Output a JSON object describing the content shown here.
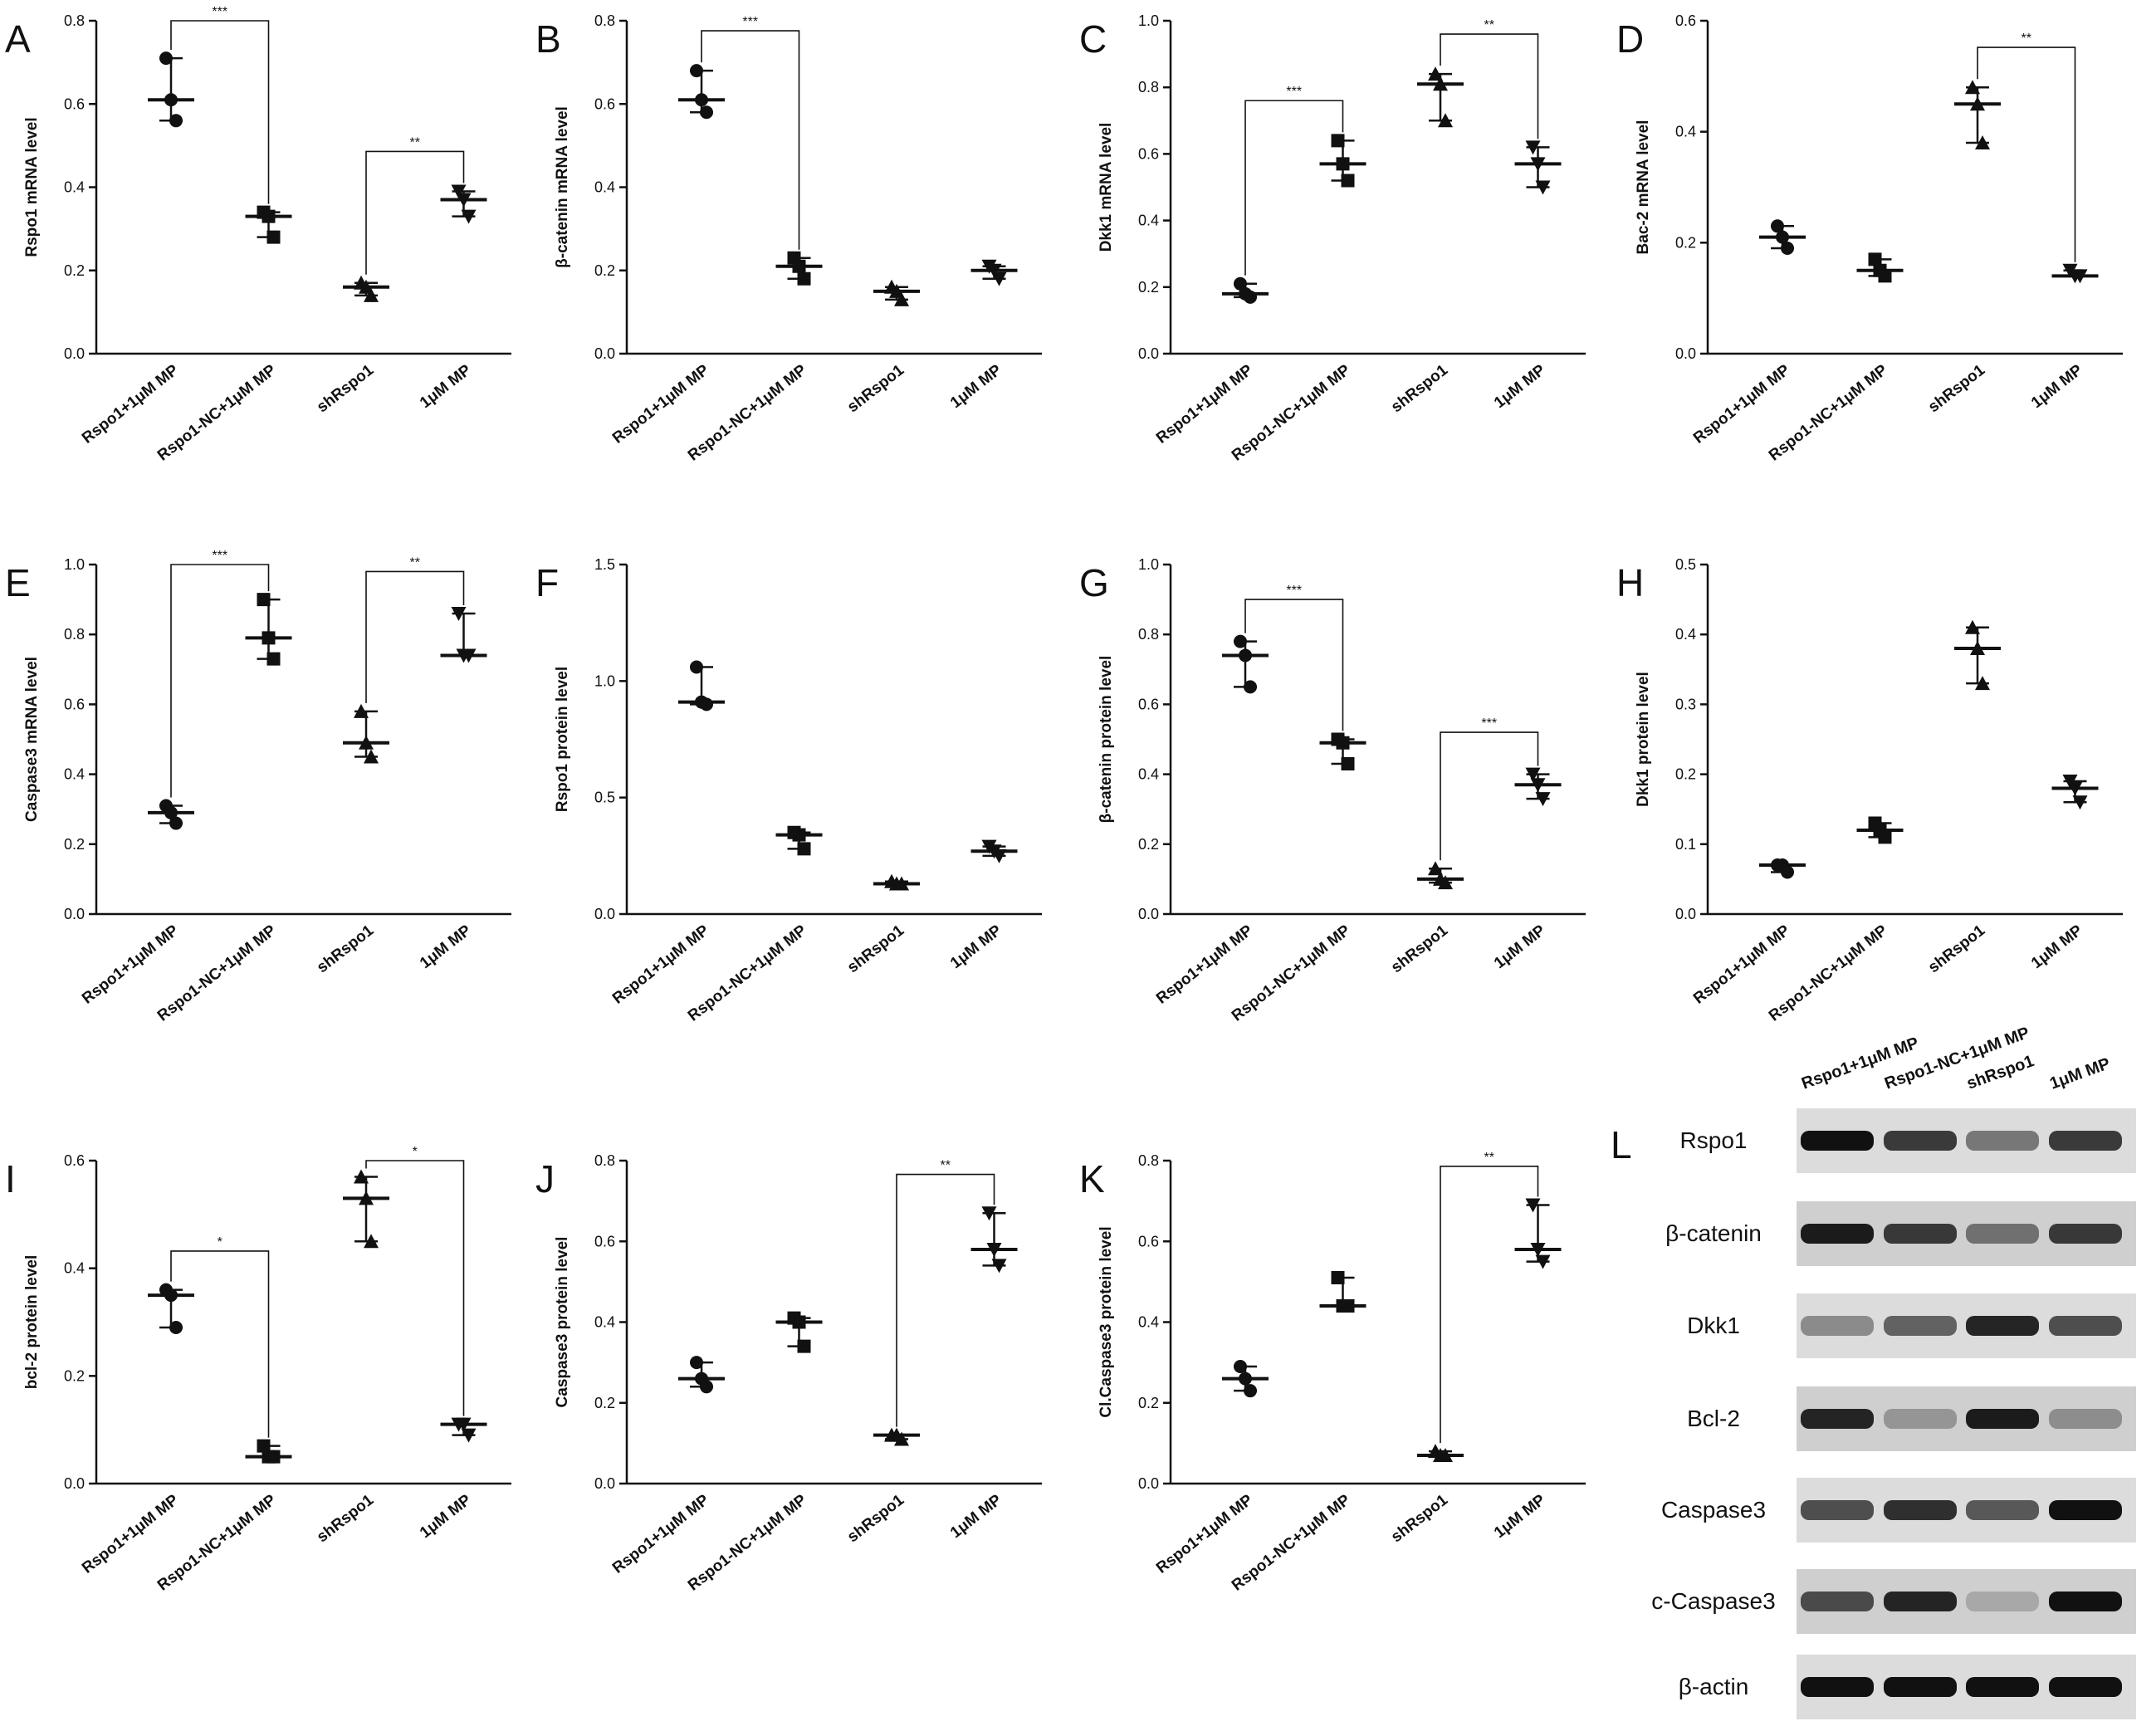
{
  "chart_data": [
    {
      "type": "dotplot",
      "label": "A",
      "ylabel": "Rspo1 mRNA level",
      "categories": [
        "Rspo1+1μM MP",
        "Rspo1-NC+1μM MP",
        "shRspo1",
        "1μM MP"
      ],
      "values": [
        [
          0.71,
          0.61,
          0.56
        ],
        [
          0.34,
          0.33,
          0.28
        ],
        [
          0.17,
          0.16,
          0.14
        ],
        [
          0.39,
          0.37,
          0.33
        ]
      ],
      "medians": [
        0.61,
        0.33,
        0.16,
        0.37
      ],
      "ylim": [
        0,
        0.8
      ],
      "yticks": [
        {
          "value": 0,
          "label": "0.0"
        },
        0.2,
        0.4,
        0.6,
        0.8
      ],
      "significance": [
        {
          "between": [
            "Rspo1+1μM MP",
            "Rspo1-NC+1μM MP"
          ],
          "label": "***"
        },
        {
          "between": [
            "shRspo1",
            "1μM MP"
          ],
          "label": "**"
        }
      ]
    },
    {
      "type": "dotplot",
      "label": "B",
      "ylabel": "β-catenin mRNA level",
      "categories": [
        "Rspo1+1μM MP",
        "Rspo1-NC+1μM MP",
        "shRspo1",
        "1μM MP"
      ],
      "values": [
        [
          0.68,
          0.61,
          0.58
        ],
        [
          0.23,
          0.21,
          0.18
        ],
        [
          0.16,
          0.15,
          0.13
        ],
        [
          0.21,
          0.2,
          0.18
        ]
      ],
      "medians": [
        0.61,
        0.21,
        0.15,
        0.2
      ],
      "ylim": [
        0,
        0.8
      ],
      "yticks": [
        {
          "value": 0,
          "label": "0.0"
        },
        0.2,
        0.4,
        0.6,
        0.8
      ],
      "significance": [
        {
          "between": [
            "Rspo1+1μM MP",
            "Rspo1-NC+1μM MP"
          ],
          "label": "***"
        }
      ]
    },
    {
      "type": "dotplot",
      "label": "C",
      "ylabel": "Dkk1 mRNA level",
      "categories": [
        "Rspo1+1μM MP",
        "Rspo1-NC+1μM MP",
        "shRspo1",
        "1μM MP"
      ],
      "values": [
        [
          0.21,
          0.18,
          0.17
        ],
        [
          0.64,
          0.57,
          0.52
        ],
        [
          0.84,
          0.81,
          0.7
        ],
        [
          0.62,
          0.57,
          0.5
        ]
      ],
      "medians": [
        0.18,
        0.57,
        0.81,
        0.57
      ],
      "ylim": [
        0,
        1
      ],
      "yticks": [
        {
          "value": 0,
          "label": "0.0"
        },
        0.2,
        0.4,
        0.6,
        0.8,
        {
          "value": 1,
          "label": "1.0"
        }
      ],
      "significance": [
        {
          "between": [
            "Rspo1+1μM MP",
            "Rspo1-NC+1μM MP"
          ],
          "label": "***"
        },
        {
          "between": [
            "shRspo1",
            "1μM MP"
          ],
          "label": "**"
        }
      ]
    },
    {
      "type": "dotplot",
      "label": "D",
      "ylabel": "Bac-2 mRNA level",
      "categories": [
        "Rspo1+1μM MP",
        "Rspo1-NC+1μM MP",
        "shRspo1",
        "1μM MP"
      ],
      "values": [
        [
          0.23,
          0.21,
          0.19
        ],
        [
          0.17,
          0.15,
          0.14
        ],
        [
          0.48,
          0.45,
          0.38
        ],
        [
          0.15,
          0.14,
          0.14
        ]
      ],
      "medians": [
        0.21,
        0.15,
        0.45,
        0.14
      ],
      "ylim": [
        0,
        0.6
      ],
      "yticks": [
        {
          "value": 0,
          "label": "0.0"
        },
        0.2,
        0.4,
        0.6
      ],
      "significance": [
        {
          "between": [
            "shRspo1",
            "1μM MP"
          ],
          "label": "**"
        }
      ]
    },
    {
      "type": "dotplot",
      "label": "E",
      "ylabel": "Caspase3 mRNA level",
      "categories": [
        "Rspo1+1μM MP",
        "Rspo1-NC+1μM MP",
        "shRspo1",
        "1μM MP"
      ],
      "values": [
        [
          0.31,
          0.29,
          0.26
        ],
        [
          0.9,
          0.79,
          0.73
        ],
        [
          0.58,
          0.49,
          0.45
        ],
        [
          0.86,
          0.74,
          0.74
        ]
      ],
      "medians": [
        0.29,
        0.79,
        0.49,
        0.74
      ],
      "ylim": [
        0,
        1
      ],
      "yticks": [
        {
          "value": 0,
          "label": "0.0"
        },
        0.2,
        0.4,
        0.6,
        0.8,
        {
          "value": 1,
          "label": "1.0"
        }
      ],
      "significance": [
        {
          "between": [
            "Rspo1+1μM MP",
            "Rspo1-NC+1μM MP"
          ],
          "label": "***"
        },
        {
          "between": [
            "shRspo1",
            "1μM MP"
          ],
          "label": "**"
        }
      ]
    },
    {
      "type": "dotplot",
      "label": "F",
      "ylabel": "Rspo1 protein level",
      "categories": [
        "Rspo1+1μM MP",
        "Rspo1-NC+1μM MP",
        "shRspo1",
        "1μM MP"
      ],
      "values": [
        [
          1.06,
          0.91,
          0.9
        ],
        [
          0.35,
          0.34,
          0.28
        ],
        [
          0.14,
          0.13,
          0.13
        ],
        [
          0.29,
          0.27,
          0.25
        ]
      ],
      "medians": [
        0.91,
        0.34,
        0.13,
        0.27
      ],
      "ylim": [
        0,
        1.5
      ],
      "yticks": [
        {
          "value": 0,
          "label": "0.0"
        },
        0.5,
        {
          "value": 1,
          "label": "1.0"
        },
        1.5
      ],
      "significance": []
    },
    {
      "type": "dotplot",
      "label": "G",
      "ylabel": "β-catenin protein level",
      "categories": [
        "Rspo1+1μM MP",
        "Rspo1-NC+1μM MP",
        "shRspo1",
        "1μM MP"
      ],
      "values": [
        [
          0.78,
          0.74,
          0.65
        ],
        [
          0.5,
          0.49,
          0.43
        ],
        [
          0.13,
          0.1,
          0.09
        ],
        [
          0.4,
          0.37,
          0.33
        ]
      ],
      "medians": [
        0.74,
        0.49,
        0.1,
        0.37
      ],
      "ylim": [
        0,
        1
      ],
      "yticks": [
        {
          "value": 0,
          "label": "0.0"
        },
        0.2,
        0.4,
        0.6,
        0.8,
        {
          "value": 1,
          "label": "1.0"
        }
      ],
      "significance": [
        {
          "between": [
            "Rspo1+1μM MP",
            "Rspo1-NC+1μM MP"
          ],
          "label": "***"
        },
        {
          "between": [
            "shRspo1",
            "1μM MP"
          ],
          "label": "***"
        }
      ]
    },
    {
      "type": "dotplot",
      "label": "H",
      "ylabel": "Dkk1 protein level",
      "categories": [
        "Rspo1+1μM MP",
        "Rspo1-NC+1μM MP",
        "shRspo1",
        "1μM MP"
      ],
      "values": [
        [
          0.07,
          0.07,
          0.06
        ],
        [
          0.13,
          0.12,
          0.11
        ],
        [
          0.41,
          0.38,
          0.33
        ],
        [
          0.19,
          0.18,
          0.16
        ]
      ],
      "medians": [
        0.07,
        0.12,
        0.38,
        0.18
      ],
      "ylim": [
        0,
        0.5
      ],
      "yticks": [
        {
          "value": 0,
          "label": "0.0"
        },
        0.1,
        0.2,
        0.3,
        0.4,
        0.5
      ],
      "significance": []
    },
    {
      "type": "dotplot",
      "label": "I",
      "ylabel": "bcl-2 protein level",
      "categories": [
        "Rspo1+1μM MP",
        "Rspo1-NC+1μM MP",
        "shRspo1",
        "1μM MP"
      ],
      "values": [
        [
          0.36,
          0.35,
          0.29
        ],
        [
          0.07,
          0.05,
          0.05
        ],
        [
          0.57,
          0.53,
          0.45
        ],
        [
          0.11,
          0.11,
          0.09
        ]
      ],
      "medians": [
        0.35,
        0.05,
        0.53,
        0.11
      ],
      "ylim": [
        0,
        0.6
      ],
      "yticks": [
        {
          "value": 0,
          "label": "0.0"
        },
        0.2,
        0.4,
        0.6
      ],
      "significance": [
        {
          "between": [
            "Rspo1+1μM MP",
            "Rspo1-NC+1μM MP"
          ],
          "label": "*"
        },
        {
          "between": [
            "shRspo1",
            "1μM MP"
          ],
          "label": "*"
        }
      ]
    },
    {
      "type": "dotplot",
      "label": "J",
      "ylabel": "Caspase3 protein level",
      "categories": [
        "Rspo1+1μM MP",
        "Rspo1-NC+1μM MP",
        "shRspo1",
        "1μM MP"
      ],
      "values": [
        [
          0.3,
          0.26,
          0.24
        ],
        [
          0.41,
          0.4,
          0.34
        ],
        [
          0.12,
          0.12,
          0.11
        ],
        [
          0.67,
          0.58,
          0.54
        ]
      ],
      "medians": [
        0.26,
        0.4,
        0.12,
        0.58
      ],
      "ylim": [
        0,
        0.8
      ],
      "yticks": [
        {
          "value": 0,
          "label": "0.0"
        },
        0.2,
        0.4,
        0.6,
        0.8
      ],
      "significance": [
        {
          "between": [
            "shRspo1",
            "1μM MP"
          ],
          "label": "**"
        }
      ]
    },
    {
      "type": "dotplot",
      "label": "K",
      "ylabel": "Cl.Caspase3 protein level",
      "categories": [
        "Rspo1+1μM MP",
        "Rspo1-NC+1μM MP",
        "shRspo1",
        "1μM MP"
      ],
      "values": [
        [
          0.29,
          0.26,
          0.23
        ],
        [
          0.51,
          0.44,
          0.44
        ],
        [
          0.08,
          0.07,
          0.07
        ],
        [
          0.69,
          0.58,
          0.55
        ]
      ],
      "medians": [
        0.26,
        0.44,
        0.07,
        0.58
      ],
      "ylim": [
        0,
        0.8
      ],
      "yticks": [
        {
          "value": 0,
          "label": "0.0"
        },
        0.2,
        0.4,
        0.6,
        0.8
      ],
      "significance": [
        {
          "between": [
            "shRspo1",
            "1μM MP"
          ],
          "label": "**"
        }
      ]
    }
  ],
  "blot": {
    "label": "L",
    "lanes": [
      "Rspo1+1μM MP",
      "Rspo1-NC+1μM MP",
      "shRspo1",
      "1μM MP"
    ],
    "proteins": [
      "Rspo1",
      "β-catenin",
      "Dkk1",
      "Bcl-2",
      "Caspase3",
      "c-Caspase3",
      "β-actin"
    ]
  }
}
